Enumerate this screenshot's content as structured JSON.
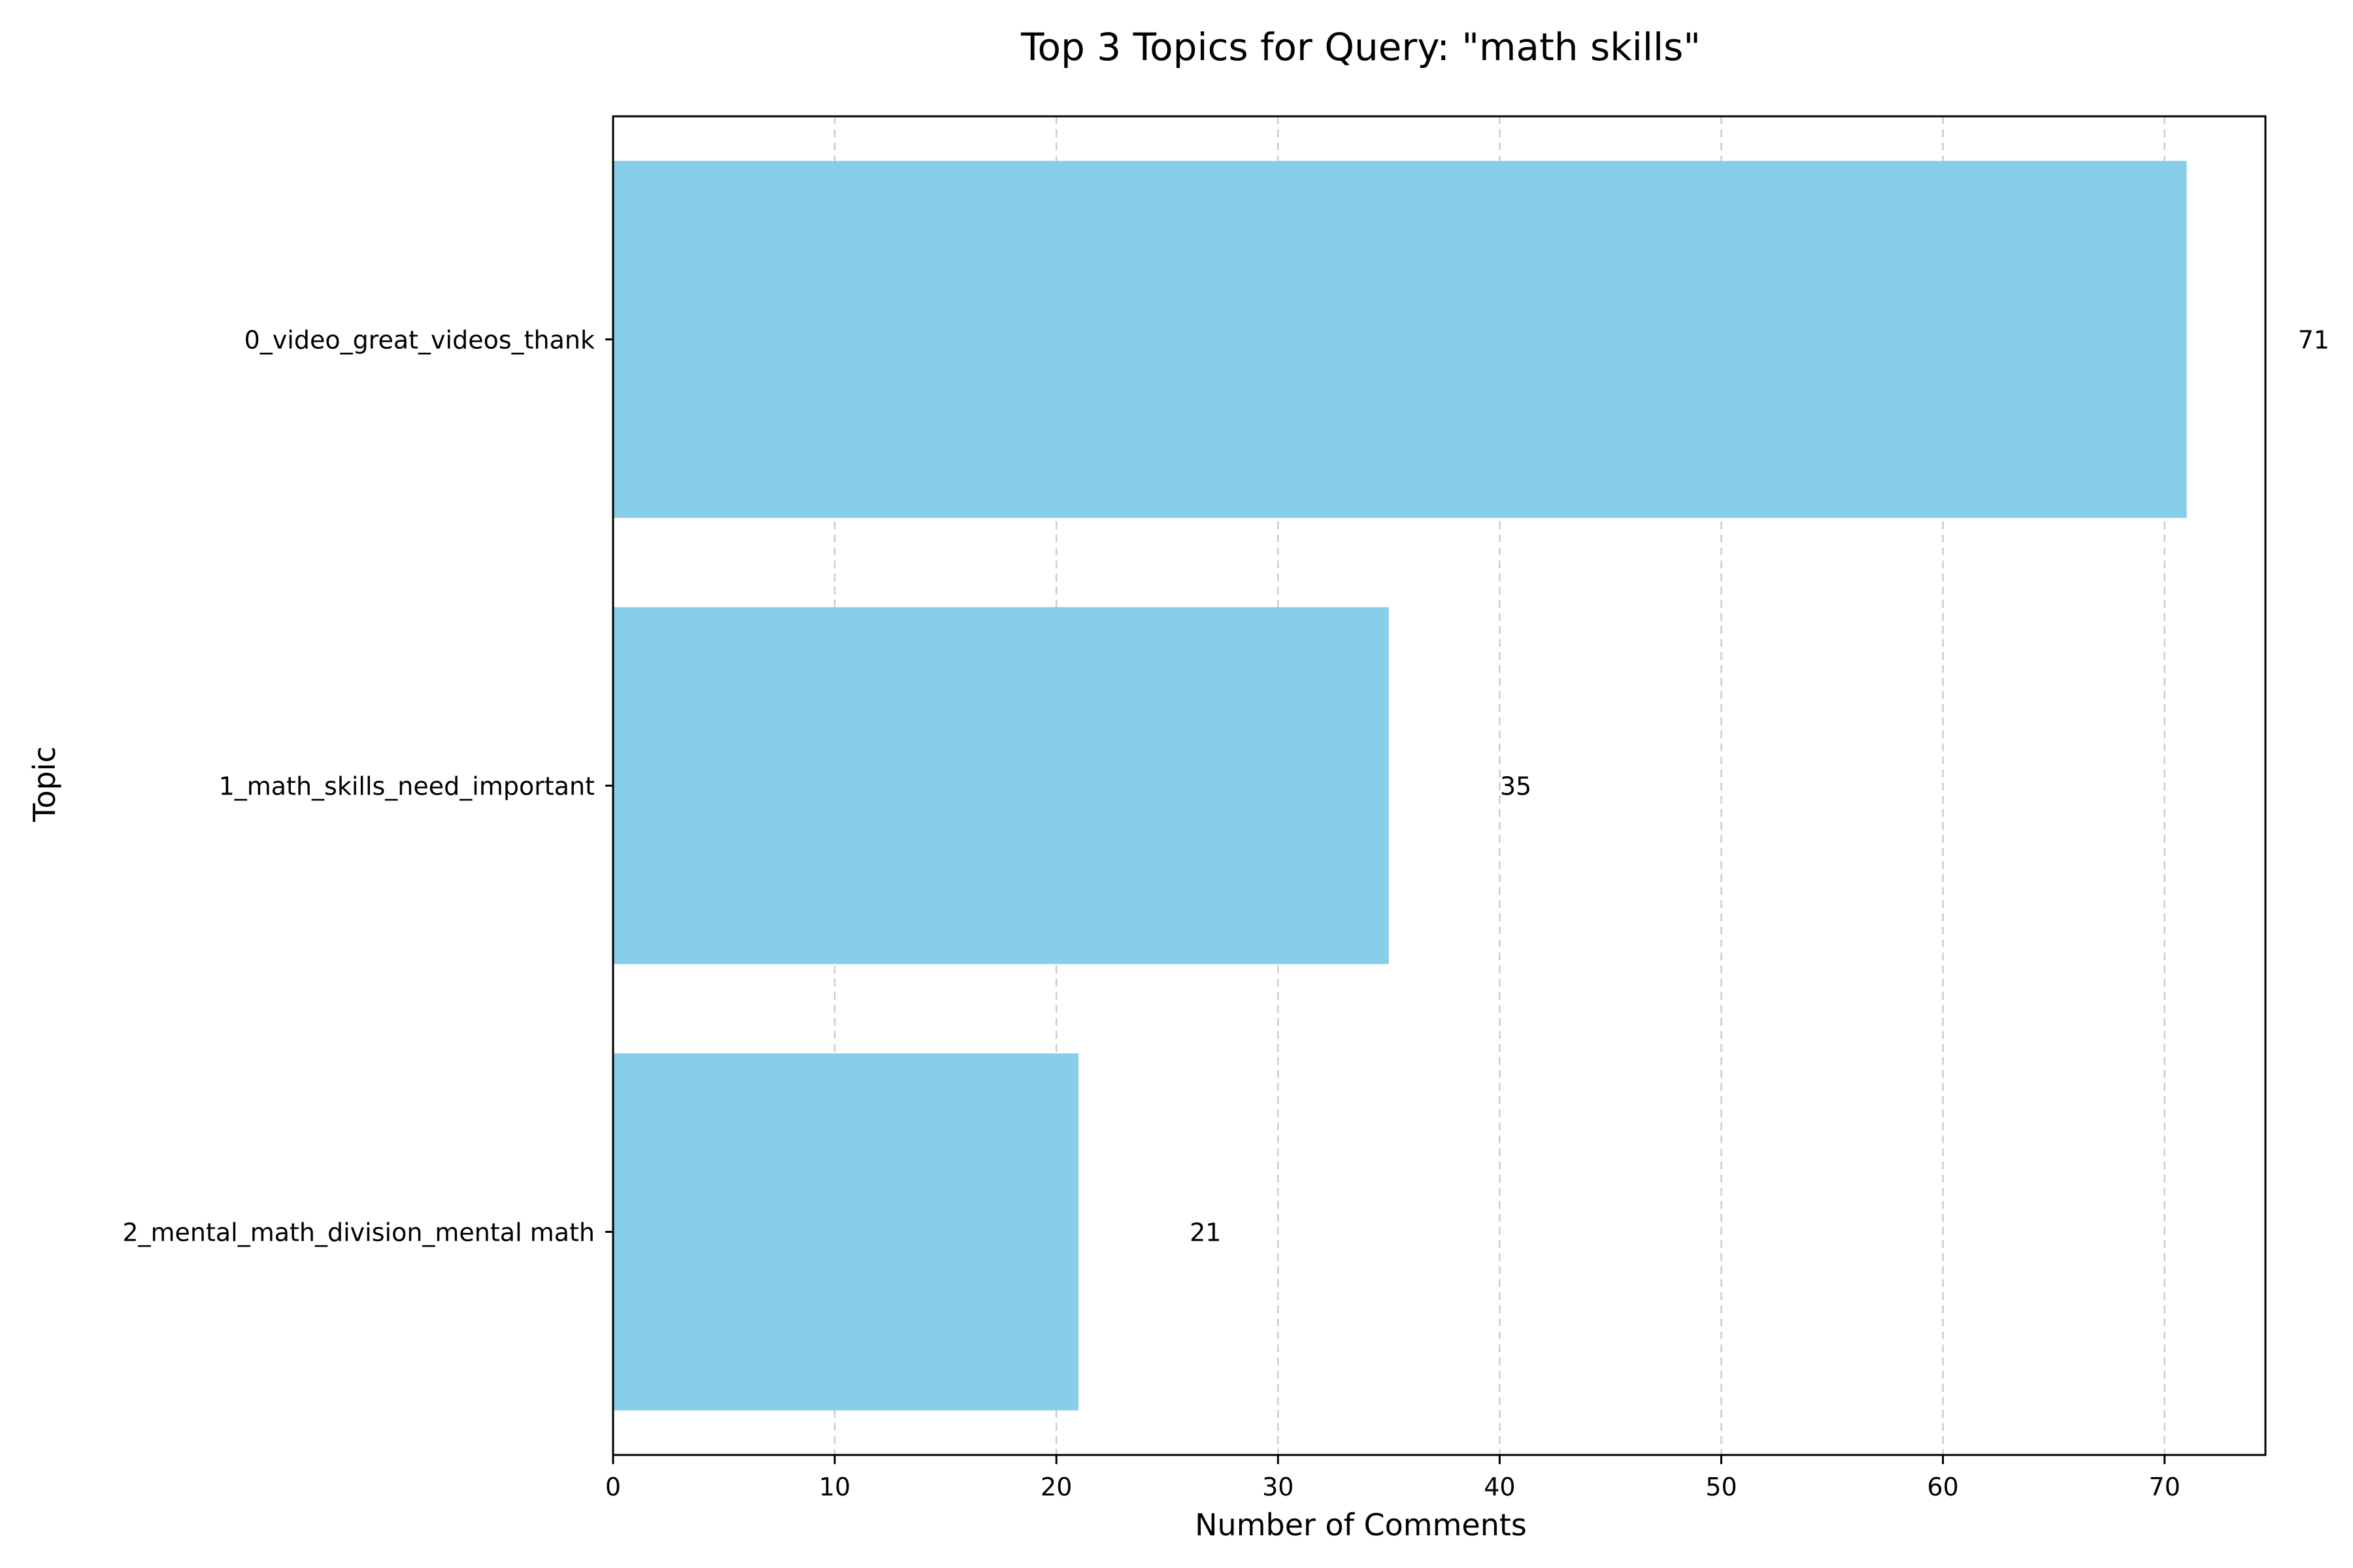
{
  "chart_data": {
    "type": "bar",
    "orientation": "horizontal",
    "title": "Top 3 Topics for Query: \"math skills\"",
    "xlabel": "Number of Comments",
    "ylabel": "Topic",
    "categories": [
      "0_video_great_videos_thank",
      "1_math_skills_need_important",
      "2_mental_math_division_mental math"
    ],
    "values": [
      71,
      35,
      21
    ],
    "value_labels": [
      "71",
      "35",
      "21"
    ],
    "xlim": [
      0,
      74.55
    ],
    "xticks": [
      0,
      10,
      20,
      30,
      40,
      50,
      60,
      70
    ],
    "xtick_labels": [
      "0",
      "10",
      "20",
      "30",
      "40",
      "50",
      "60",
      "70"
    ],
    "grid": {
      "axis": "x",
      "style": "dashed"
    },
    "colors": {
      "bar": "#87CEEB",
      "grid": "#cccccc",
      "axis": "#000000",
      "text": "#000000"
    }
  }
}
